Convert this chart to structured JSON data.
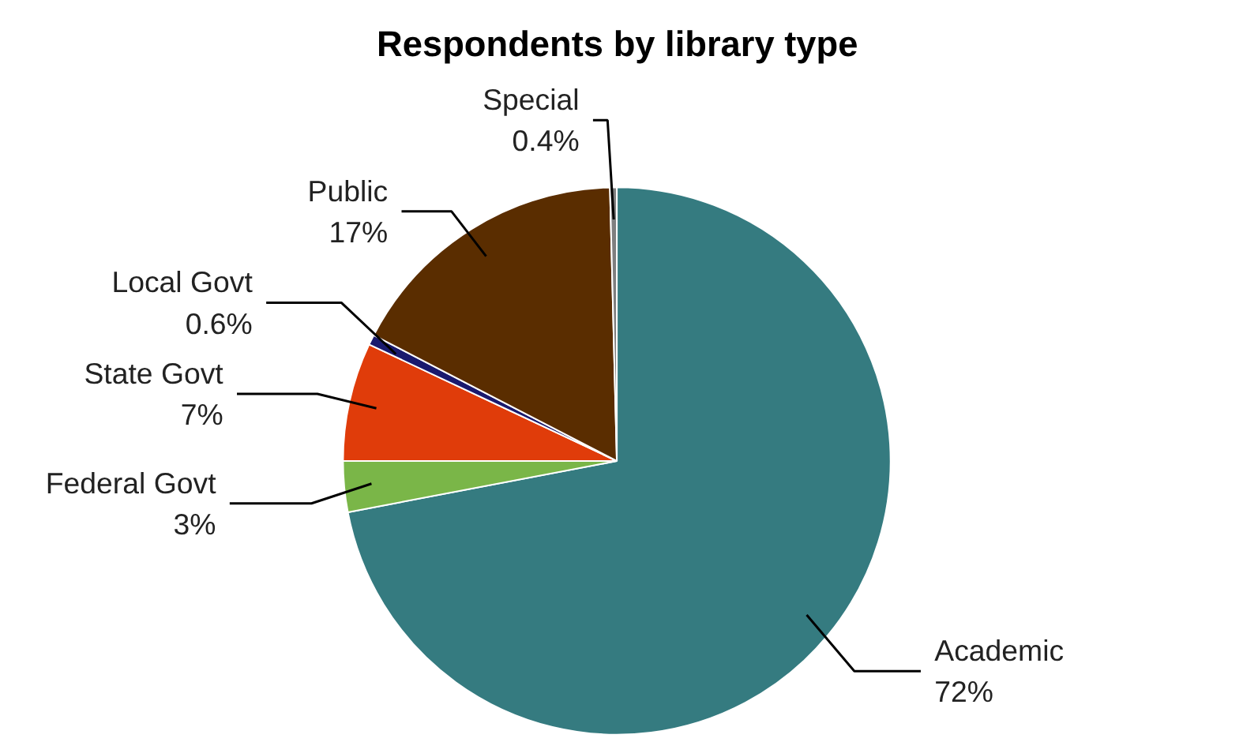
{
  "chart_data": {
    "type": "pie",
    "title": "Respondents  by library type",
    "categories": [
      "Academic",
      "Federal Govt",
      "State Govt",
      "Local Govt",
      "Public",
      "Special"
    ],
    "values": [
      72,
      3,
      7,
      0.6,
      17,
      0.4
    ],
    "value_labels": [
      "72%",
      "3%",
      "7%",
      "0.6%",
      "17%",
      "0.4%"
    ],
    "colors": [
      "#357b80",
      "#7ab648",
      "#e03c0a",
      "#1a1a6e",
      "#5a2d00",
      "#7f7f7f"
    ]
  }
}
